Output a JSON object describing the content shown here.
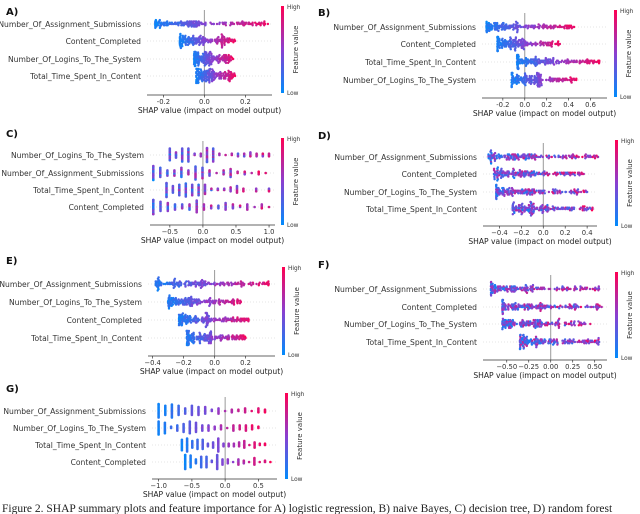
{
  "colors": {
    "low": "#008bfb",
    "high": "#ff0052"
  },
  "colorbar": {
    "high": "High",
    "low": "Low",
    "title": "Feature value"
  },
  "caption": "Figure 2. SHAP summary plots and feature importance for A) logistic regression, B) naive Bayes, C) decision tree, D) random forest",
  "chart_data": [
    {
      "type": "scatter",
      "subtype": "beeswarm",
      "panel": "A)",
      "xlabel": "SHAP value (impact on model output)",
      "xlim": [
        -0.28,
        0.33
      ],
      "xticks": [
        "-0.2",
        "0.0",
        "0.2"
      ],
      "xtick_values": [
        -0.2,
        0,
        0.2
      ],
      "features": [
        {
          "name": "Number_Of_Assignment_Submissions",
          "range": [
            -0.24,
            0.31
          ]
        },
        {
          "name": "Content_Completed",
          "range": [
            -0.12,
            0.15
          ]
        },
        {
          "name": "Number_Of_Logins_To_The_System",
          "range": [
            -0.05,
            0.14
          ]
        },
        {
          "name": "Total_Time_Spent_In_Content",
          "range": [
            -0.04,
            0.15
          ]
        }
      ]
    },
    {
      "type": "scatter",
      "subtype": "beeswarm",
      "panel": "B)",
      "xlabel": "SHAP value (impact on model output)",
      "xlim": [
        -0.39,
        0.75
      ],
      "xticks": [
        "-0.2",
        "0.0",
        "0.2",
        "0.4",
        "0.6"
      ],
      "xtick_values": [
        -0.2,
        0,
        0.2,
        0.4,
        0.6
      ],
      "features": [
        {
          "name": "Number_Of_Assignment_Submissions",
          "range": [
            -0.35,
            0.45
          ]
        },
        {
          "name": "Content_Completed",
          "range": [
            -0.25,
            0.32
          ]
        },
        {
          "name": "Total_Time_Spent_In_Content",
          "range": [
            -0.07,
            0.68
          ]
        },
        {
          "name": "Number_Of_Logins_To_The_System",
          "range": [
            -0.12,
            0.47
          ]
        }
      ]
    },
    {
      "type": "scatter",
      "subtype": "beeswarm",
      "panel": "C)",
      "xlabel": "SHAP value (impact on model output)",
      "xlim": [
        -0.8,
        1.09
      ],
      "xticks": [
        "−0.5",
        "0.0",
        "0.5",
        "1.0"
      ],
      "xtick_values": [
        -0.5,
        0,
        0.5,
        1.0
      ],
      "features": [
        {
          "name": "Number_Of_Logins_To_The_System",
          "range": [
            -0.5,
            1.0
          ]
        },
        {
          "name": "Number_Of_Assignment_Submissions",
          "range": [
            -0.75,
            0.95
          ]
        },
        {
          "name": "Total_Time_Spent_In_Content",
          "range": [
            -0.55,
            1.0
          ]
        },
        {
          "name": "Content_Completed",
          "range": [
            -0.75,
            1.0
          ]
        }
      ]
    },
    {
      "type": "scatter",
      "subtype": "beeswarm",
      "panel": "D)",
      "xlabel": "SHAP value (impact on model output)",
      "xlim": [
        -0.55,
        0.49
      ],
      "xticks": [
        "−0.4",
        "−0.2",
        "0.0",
        "0.2",
        "0.4"
      ],
      "xtick_values": [
        -0.4,
        -0.2,
        0,
        0.2,
        0.4
      ],
      "features": [
        {
          "name": "Number_Of_Assignment_Submissions",
          "range": [
            -0.5,
            0.5
          ]
        },
        {
          "name": "Content_Completed",
          "range": [
            -0.45,
            0.37
          ]
        },
        {
          "name": "Number_Of_Logins_To_The_System",
          "range": [
            -0.43,
            0.4
          ]
        },
        {
          "name": "Total_Time_Spent_In_Content",
          "range": [
            -0.28,
            0.45
          ]
        }
      ]
    },
    {
      "type": "scatter",
      "subtype": "beeswarm",
      "panel": "E)",
      "xlabel": "SHAP value (impact on model output)",
      "xlim": [
        -0.43,
        0.39
      ],
      "xticks": [
        "−0.4",
        "−0.2",
        "0.0",
        "0.2"
      ],
      "xtick_values": [
        -0.4,
        -0.2,
        0,
        0.2
      ],
      "features": [
        {
          "name": "Number_Of_Assignment_Submissions",
          "range": [
            -0.38,
            0.35
          ]
        },
        {
          "name": "Number_Of_Logins_To_The_System",
          "range": [
            -0.3,
            0.17
          ]
        },
        {
          "name": "Content_Completed",
          "range": [
            -0.23,
            0.22
          ]
        },
        {
          "name": "Total_Time_Spent_In_Content",
          "range": [
            -0.18,
            0.2
          ]
        }
      ]
    },
    {
      "type": "scatter",
      "subtype": "beeswarm",
      "panel": "F)",
      "xlabel": "SHAP value (impact on model output)",
      "xlim": [
        -0.77,
        0.64
      ],
      "xticks": [
        "−0.50",
        "−0.25",
        "0.00",
        "0.25",
        "0.50"
      ],
      "xtick_values": [
        -0.5,
        -0.25,
        0,
        0.25,
        0.5
      ],
      "features": [
        {
          "name": "Number_Of_Assignment_Submissions",
          "range": [
            -0.68,
            0.55
          ]
        },
        {
          "name": "Content_Completed",
          "range": [
            -0.55,
            0.58
          ]
        },
        {
          "name": "Number_Of_Logins_To_The_System",
          "range": [
            -0.55,
            0.45
          ]
        },
        {
          "name": "Total_Time_Spent_In_Content",
          "range": [
            -0.35,
            0.55
          ]
        }
      ]
    },
    {
      "type": "scatter",
      "subtype": "beeswarm",
      "panel": "G)",
      "xlabel": "SHAP value (impact on model output)",
      "xlim": [
        -1.1,
        0.78
      ],
      "xticks": [
        "−1.0",
        "−0.5",
        "0.0",
        "0.5"
      ],
      "xtick_values": [
        -1.0,
        -0.5,
        0,
        0.5
      ],
      "features": [
        {
          "name": "Number_Of_Assignment_Submissions",
          "range": [
            -1.0,
            0.6
          ]
        },
        {
          "name": "Number_Of_Logins_To_The_System",
          "range": [
            -1.0,
            0.5
          ]
        },
        {
          "name": "Total_Time_Spent_In_Content",
          "range": [
            -0.65,
            0.6
          ]
        },
        {
          "name": "Content_Completed",
          "range": [
            -0.6,
            0.68
          ]
        }
      ]
    }
  ]
}
